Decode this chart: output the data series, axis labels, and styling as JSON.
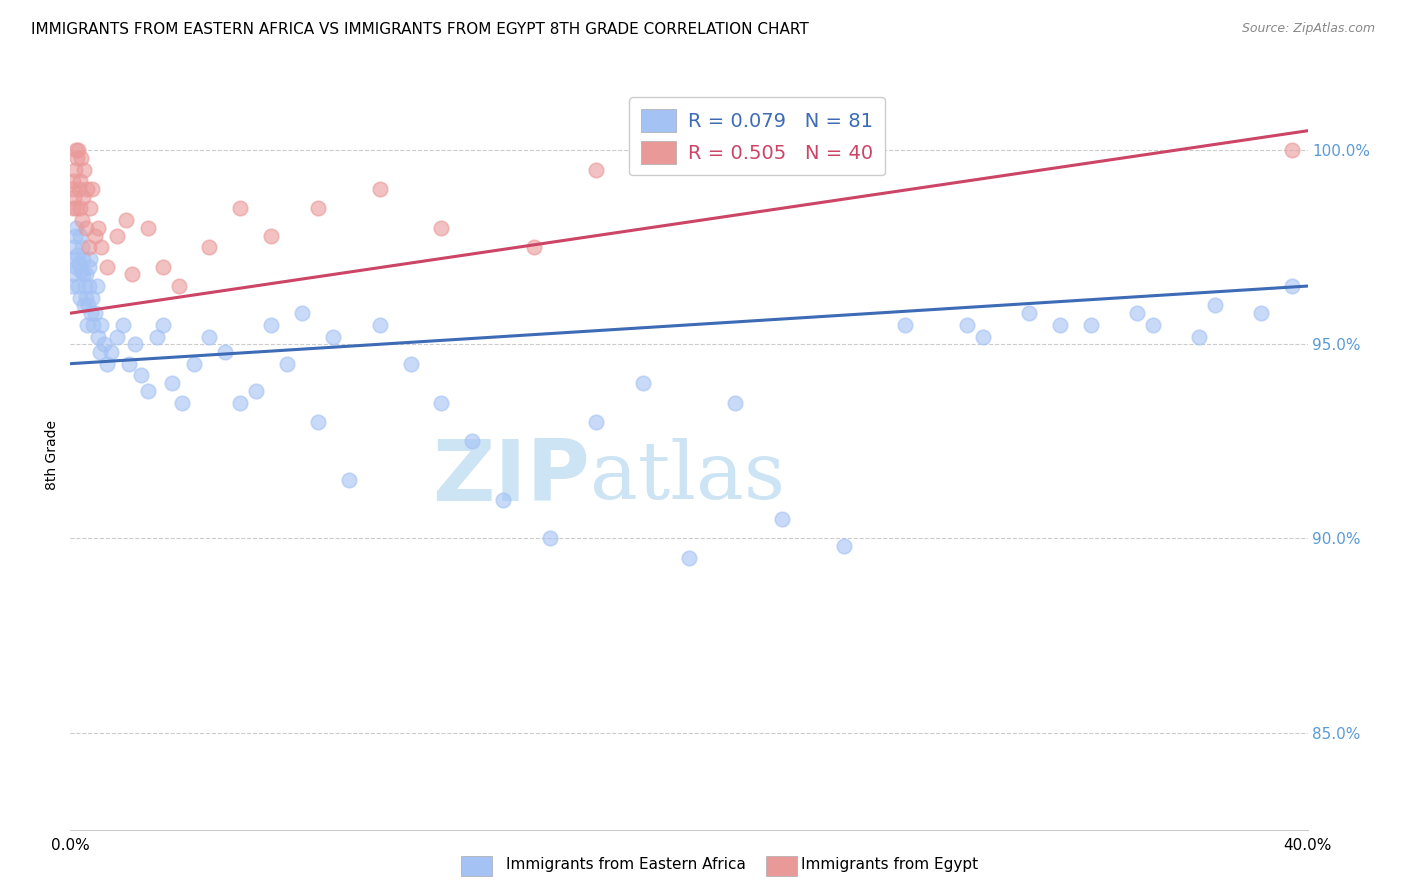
{
  "title": "IMMIGRANTS FROM EASTERN AFRICA VS IMMIGRANTS FROM EGYPT 8TH GRADE CORRELATION CHART",
  "source": "Source: ZipAtlas.com",
  "ylabel": "8th Grade",
  "right_yticks": [
    85.0,
    90.0,
    95.0,
    100.0
  ],
  "xmin": 0.0,
  "xmax": 40.0,
  "ymin": 82.5,
  "ymax": 101.8,
  "blue_R": 0.079,
  "blue_N": 81,
  "pink_R": 0.505,
  "pink_N": 40,
  "blue_color": "#a4c2f4",
  "pink_color": "#ea9999",
  "blue_line_color": "#3d6bb5",
  "pink_line_color": "#cc4466",
  "grid_color": "#cccccc",
  "watermark_color": "#cde4f5",
  "blue_line_y0": 94.5,
  "blue_line_y1": 96.5,
  "pink_line_y0": 95.8,
  "pink_line_y1": 100.5,
  "blue_scatter_x": [
    0.05,
    0.08,
    0.1,
    0.12,
    0.15,
    0.18,
    0.2,
    0.22,
    0.25,
    0.28,
    0.3,
    0.32,
    0.35,
    0.38,
    0.4,
    0.42,
    0.45,
    0.48,
    0.5,
    0.52,
    0.55,
    0.58,
    0.6,
    0.62,
    0.65,
    0.68,
    0.7,
    0.75,
    0.8,
    0.85,
    0.9,
    0.95,
    1.0,
    1.1,
    1.2,
    1.3,
    1.5,
    1.7,
    1.9,
    2.1,
    2.3,
    2.5,
    2.8,
    3.0,
    3.3,
    3.6,
    4.0,
    4.5,
    5.0,
    5.5,
    6.0,
    6.5,
    7.0,
    7.5,
    8.0,
    8.5,
    9.0,
    10.0,
    11.0,
    12.0,
    13.0,
    14.0,
    15.5,
    17.0,
    18.5,
    20.0,
    21.5,
    23.0,
    25.0,
    27.0,
    29.0,
    31.0,
    33.0,
    35.0,
    37.0,
    38.5,
    39.5,
    29.5,
    32.0,
    34.5,
    36.5
  ],
  "blue_scatter_y": [
    96.5,
    97.2,
    96.8,
    97.5,
    97.8,
    98.0,
    97.0,
    97.3,
    96.5,
    97.1,
    97.8,
    96.2,
    96.9,
    97.5,
    96.8,
    97.2,
    96.0,
    96.5,
    96.2,
    96.8,
    95.5,
    96.0,
    97.0,
    96.5,
    97.2,
    95.8,
    96.2,
    95.5,
    95.8,
    96.5,
    95.2,
    94.8,
    95.5,
    95.0,
    94.5,
    94.8,
    95.2,
    95.5,
    94.5,
    95.0,
    94.2,
    93.8,
    95.2,
    95.5,
    94.0,
    93.5,
    94.5,
    95.2,
    94.8,
    93.5,
    93.8,
    95.5,
    94.5,
    95.8,
    93.0,
    95.2,
    91.5,
    95.5,
    94.5,
    93.5,
    92.5,
    91.0,
    90.0,
    93.0,
    94.0,
    89.5,
    93.5,
    90.5,
    89.8,
    95.5,
    95.5,
    95.8,
    95.5,
    95.5,
    96.0,
    95.8,
    96.5,
    95.2,
    95.5,
    95.8,
    95.2
  ],
  "pink_scatter_x": [
    0.05,
    0.08,
    0.1,
    0.13,
    0.15,
    0.18,
    0.2,
    0.22,
    0.25,
    0.28,
    0.3,
    0.32,
    0.35,
    0.38,
    0.42,
    0.45,
    0.5,
    0.55,
    0.6,
    0.65,
    0.7,
    0.8,
    0.9,
    1.0,
    1.2,
    1.5,
    1.8,
    2.0,
    2.5,
    3.0,
    3.5,
    4.5,
    5.5,
    6.5,
    8.0,
    10.0,
    12.0,
    15.0,
    17.0,
    39.5
  ],
  "pink_scatter_y": [
    99.0,
    98.5,
    99.2,
    98.8,
    99.5,
    100.0,
    98.5,
    99.8,
    100.0,
    99.0,
    98.5,
    99.2,
    99.8,
    98.2,
    98.8,
    99.5,
    98.0,
    99.0,
    97.5,
    98.5,
    99.0,
    97.8,
    98.0,
    97.5,
    97.0,
    97.8,
    98.2,
    96.8,
    98.0,
    97.0,
    96.5,
    97.5,
    98.5,
    97.8,
    98.5,
    99.0,
    98.0,
    97.5,
    99.5,
    100.0
  ]
}
